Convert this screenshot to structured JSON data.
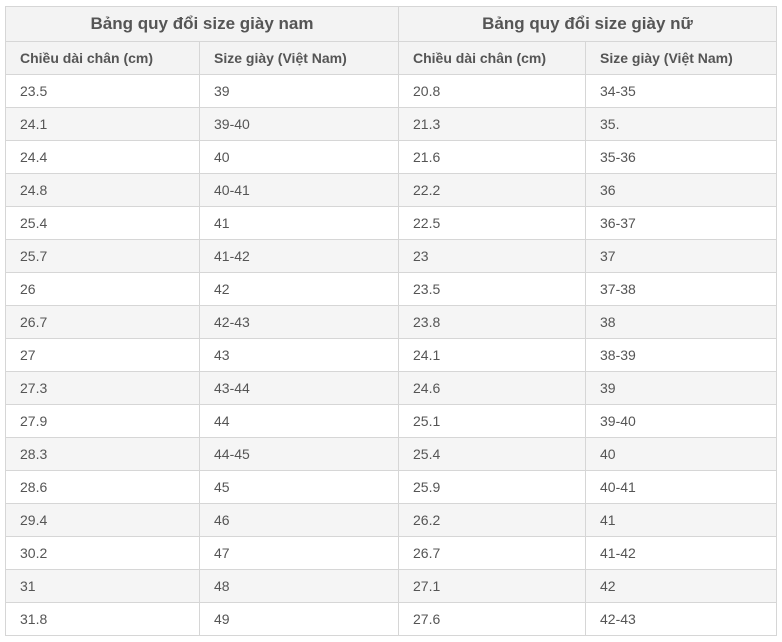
{
  "men": {
    "title": "Bảng quy đổi size giày nam",
    "col_length": "Chiều dài chân (cm)",
    "col_size": "Size giày (Việt Nam)"
  },
  "women": {
    "title": "Bảng quy đổi size giày nữ",
    "col_length": "Chiều dài chân (cm)",
    "col_size": "Size giày (Việt Nam)"
  },
  "rows": [
    {
      "men_length": "23.5",
      "men_size": "39",
      "women_length": "20.8",
      "women_size": "34-35"
    },
    {
      "men_length": "24.1",
      "men_size": "39-40",
      "women_length": "21.3",
      "women_size": "35."
    },
    {
      "men_length": "24.4",
      "men_size": "40",
      "women_length": "21.6",
      "women_size": "35-36"
    },
    {
      "men_length": "24.8",
      "men_size": "40-41",
      "women_length": "22.2",
      "women_size": "36"
    },
    {
      "men_length": "25.4",
      "men_size": "41",
      "women_length": "22.5",
      "women_size": "36-37"
    },
    {
      "men_length": "25.7",
      "men_size": "41-42",
      "women_length": "23",
      "women_size": "37"
    },
    {
      "men_length": "26",
      "men_size": "42",
      "women_length": "23.5",
      "women_size": "37-38"
    },
    {
      "men_length": "26.7",
      "men_size": "42-43",
      "women_length": "23.8",
      "women_size": "38"
    },
    {
      "men_length": "27",
      "men_size": "43",
      "women_length": "24.1",
      "women_size": "38-39"
    },
    {
      "men_length": "27.3",
      "men_size": "43-44",
      "women_length": "24.6",
      "women_size": "39"
    },
    {
      "men_length": "27.9",
      "men_size": "44",
      "women_length": "25.1",
      "women_size": "39-40"
    },
    {
      "men_length": "28.3",
      "men_size": "44-45",
      "women_length": "25.4",
      "women_size": "40"
    },
    {
      "men_length": "28.6",
      "men_size": "45",
      "women_length": "25.9",
      "women_size": "40-41"
    },
    {
      "men_length": "29.4",
      "men_size": "46",
      "women_length": "26.2",
      "women_size": "41"
    },
    {
      "men_length": "30.2",
      "men_size": "47",
      "women_length": "26.7",
      "women_size": "41-42"
    },
    {
      "men_length": "31",
      "men_size": "48",
      "women_length": "27.1",
      "women_size": "42"
    },
    {
      "men_length": "31.8",
      "men_size": "49",
      "women_length": "27.6",
      "women_size": "42-43"
    }
  ]
}
